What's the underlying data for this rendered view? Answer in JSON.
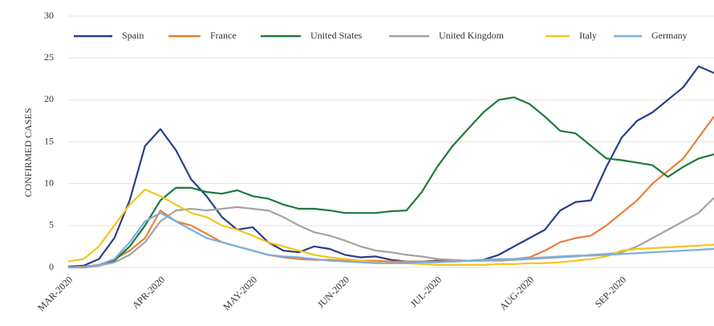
{
  "chart_data": {
    "type": "line",
    "y_label": "CONFIRMED CASES",
    "categories": [
      "MAR-2020",
      null,
      null,
      null,
      null,
      null,
      "APR-2020",
      null,
      null,
      null,
      null,
      null,
      "MAY-2020",
      null,
      null,
      null,
      null,
      null,
      "JUN-2020",
      null,
      null,
      null,
      null,
      null,
      "JUL-2020",
      null,
      null,
      null,
      null,
      null,
      "AUG-2020",
      null,
      null,
      null,
      null,
      null,
      "SEP-2020",
      null,
      null,
      null,
      null,
      null,
      null
    ],
    "series": [
      {
        "name": "Spain",
        "color": "#2b3d8c",
        "values": [
          0.1,
          0.2,
          1,
          3.5,
          8,
          14.5,
          16.5,
          14,
          10.5,
          8.5,
          6,
          4.5,
          4.8,
          3,
          2,
          1.8,
          2.5,
          2.2,
          1.5,
          1.2,
          1.3,
          0.9,
          0.7,
          0.7,
          0.8,
          0.7,
          0.8,
          0.9,
          1.5,
          2.5,
          3.5,
          4.5,
          6.8,
          7.8,
          8,
          12,
          15.5,
          17.5,
          18.5,
          20,
          21.5,
          24,
          23.2
        ]
      },
      {
        "name": "France",
        "color": "#e8803a",
        "values": [
          0,
          0.1,
          0.3,
          1,
          2,
          3.5,
          6.8,
          5.5,
          5,
          4,
          3,
          2.5,
          2,
          1.5,
          1.2,
          1,
          0.9,
          0.9,
          0.8,
          0.8,
          0.8,
          0.7,
          0.7,
          0.7,
          0.7,
          0.7,
          0.8,
          0.8,
          0.9,
          1,
          1.2,
          2,
          3,
          3.5,
          3.8,
          5,
          6.5,
          8,
          10,
          11.5,
          13,
          15.5,
          18
        ]
      },
      {
        "name": "United States",
        "color": "#1e7a3c",
        "values": [
          0,
          0,
          0.2,
          0.8,
          2.5,
          5,
          8,
          9.5,
          9.5,
          9,
          8.8,
          9.2,
          8.5,
          8.2,
          7.5,
          7,
          7,
          6.8,
          6.5,
          6.5,
          6.5,
          6.7,
          6.8,
          9,
          12,
          14.5,
          16.5,
          18.5,
          20,
          20.3,
          19.5,
          18,
          16.3,
          16,
          14.5,
          13,
          12.8,
          12.5,
          12.2,
          10.8,
          12,
          13,
          13.5
        ]
      },
      {
        "name": "United Kingdom",
        "color": "#a3a3a3",
        "values": [
          0,
          0,
          0.2,
          0.6,
          1.5,
          3,
          5.5,
          6.8,
          7,
          6.8,
          7,
          7.2,
          7,
          6.8,
          6,
          5,
          4.2,
          3.8,
          3.2,
          2.5,
          2,
          1.8,
          1.5,
          1.3,
          1,
          0.9,
          0.8,
          0.8,
          0.8,
          0.9,
          1,
          1.1,
          1.2,
          1.3,
          1.5,
          1.6,
          1.8,
          2.5,
          3.5,
          4.5,
          5.5,
          6.5,
          8.3
        ]
      },
      {
        "name": "Italy",
        "color": "#f5c518",
        "values": [
          0.7,
          1,
          2.5,
          5,
          7.5,
          9.3,
          8.5,
          7.5,
          6.5,
          6,
          5,
          4.5,
          3.8,
          3,
          2.5,
          2,
          1.5,
          1.2,
          1,
          0.8,
          0.6,
          0.5,
          0.5,
          0.4,
          0.3,
          0.3,
          0.3,
          0.3,
          0.4,
          0.4,
          0.5,
          0.5,
          0.6,
          0.8,
          1,
          1.3,
          2,
          2.2,
          2.3,
          2.4,
          2.5,
          2.6,
          2.7
        ]
      },
      {
        "name": "Germany",
        "color": "#7aaee0",
        "values": [
          0,
          0,
          0.3,
          1,
          3,
          5.5,
          6.5,
          5.5,
          4.5,
          3.5,
          3,
          2.5,
          2,
          1.5,
          1.3,
          1.2,
          1,
          0.8,
          0.7,
          0.6,
          0.5,
          0.5,
          0.5,
          0.6,
          0.6,
          0.7,
          0.8,
          0.9,
          1,
          1,
          1.1,
          1.2,
          1.3,
          1.4,
          1.4,
          1.5,
          1.6,
          1.7,
          1.8,
          1.9,
          2,
          2.1,
          2.2
        ]
      }
    ],
    "ylim": [
      0,
      30
    ],
    "yticks": [
      0,
      5,
      10,
      15,
      20,
      25,
      30
    ],
    "grid": true,
    "legend": "top"
  }
}
